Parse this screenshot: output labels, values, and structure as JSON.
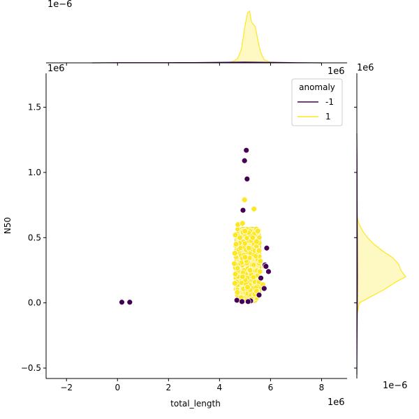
{
  "chart_data": {
    "type": "scatter",
    "title": "",
    "xlabel": "total_length",
    "ylabel": "N50",
    "x_exponent_label": "1e6",
    "y_exponent_label": "1e6",
    "top_marginal_exponent_label": "1e−6",
    "right_marginal_exponent_label": "1e−6",
    "xlim": [
      -2.8,
      9.0
    ],
    "ylim": [
      -0.58,
      1.76
    ],
    "xticks": [
      -2,
      0,
      2,
      4,
      6,
      8
    ],
    "xtick_labels": [
      "−2",
      "0",
      "2",
      "4",
      "6",
      "8"
    ],
    "yticks": [
      -0.5,
      0.0,
      0.5,
      1.0,
      1.5
    ],
    "ytick_labels": [
      "−0.5",
      "0.0",
      "0.5",
      "1.0",
      "1.5"
    ],
    "legend": {
      "title": "anomaly",
      "location": "top-right",
      "entries": [
        {
          "label": "-1",
          "color": "#440154"
        },
        {
          "label": "1",
          "color": "#fde725"
        }
      ]
    },
    "series": [
      {
        "name": "1",
        "color": "#fde725",
        "points": [
          [
            4.98,
            0.79
          ],
          [
            5.35,
            0.72
          ],
          [
            4.72,
            0.6
          ],
          [
            4.9,
            0.61
          ],
          [
            4.62,
            0.52
          ],
          [
            5.5,
            0.55
          ],
          [
            4.65,
            0.45
          ],
          [
            5.45,
            0.47
          ],
          [
            4.6,
            0.38
          ],
          [
            5.55,
            0.4
          ],
          [
            4.58,
            0.3
          ],
          [
            5.6,
            0.32
          ],
          [
            4.62,
            0.22
          ],
          [
            5.58,
            0.24
          ],
          [
            4.6,
            0.15
          ],
          [
            5.55,
            0.16
          ],
          [
            4.7,
            0.08
          ],
          [
            5.45,
            0.09
          ],
          [
            4.85,
            0.04
          ],
          [
            5.25,
            0.03
          ],
          [
            4.8,
            0.5
          ],
          [
            5.3,
            0.5
          ],
          [
            5.0,
            0.35
          ],
          [
            5.2,
            0.25
          ],
          [
            4.9,
            0.2
          ],
          [
            5.1,
            0.12
          ],
          [
            5.7,
            0.14
          ],
          [
            5.75,
            0.28
          ],
          [
            5.0,
            0.55
          ],
          [
            5.15,
            0.42
          ]
        ]
      },
      {
        "name": "-1",
        "color": "#440154",
        "points": [
          [
            5.05,
            1.17
          ],
          [
            4.98,
            1.09
          ],
          [
            5.08,
            0.95
          ],
          [
            4.92,
            0.71
          ],
          [
            0.17,
            0.005
          ],
          [
            0.48,
            0.005
          ],
          [
            5.85,
            0.42
          ],
          [
            5.78,
            0.29
          ],
          [
            5.82,
            0.28
          ],
          [
            5.92,
            0.24
          ],
          [
            5.62,
            0.19
          ],
          [
            5.75,
            0.11
          ],
          [
            5.55,
            0.06
          ],
          [
            4.68,
            0.02
          ],
          [
            4.88,
            0.01
          ],
          [
            5.22,
            0.015
          ],
          [
            5.12,
            0.01
          ]
        ]
      }
    ],
    "marginal_x": {
      "series": [
        {
          "name": "1",
          "color": "#fde725",
          "curve": [
            [
              4.2,
              0.0
            ],
            [
              4.5,
              0.02
            ],
            [
              4.7,
              0.08
            ],
            [
              4.85,
              0.25
            ],
            [
              5.0,
              0.72
            ],
            [
              5.1,
              0.97
            ],
            [
              5.18,
              1.0
            ],
            [
              5.25,
              0.8
            ],
            [
              5.3,
              0.76
            ],
            [
              5.4,
              0.7
            ],
            [
              5.5,
              0.45
            ],
            [
              5.6,
              0.22
            ],
            [
              5.75,
              0.06
            ],
            [
              6.0,
              0.01
            ],
            [
              6.3,
              0.0
            ]
          ]
        },
        {
          "name": "-1",
          "color": "#440154",
          "curve": [
            [
              -1.0,
              0.0
            ],
            [
              0.0,
              0.003
            ],
            [
              1.0,
              0.004
            ],
            [
              2.0,
              0.004
            ],
            [
              3.0,
              0.006
            ],
            [
              4.0,
              0.01
            ],
            [
              5.0,
              0.015
            ],
            [
              6.0,
              0.01
            ],
            [
              7.0,
              0.004
            ],
            [
              8.0,
              0.0
            ]
          ]
        }
      ]
    },
    "marginal_y": {
      "series": [
        {
          "name": "1",
          "color": "#fde725",
          "curve": [
            [
              -0.1,
              0.0
            ],
            [
              0.0,
              0.05
            ],
            [
              0.04,
              0.25
            ],
            [
              0.1,
              0.55
            ],
            [
              0.16,
              0.8
            ],
            [
              0.2,
              1.0
            ],
            [
              0.25,
              0.9
            ],
            [
              0.3,
              0.85
            ],
            [
              0.35,
              0.72
            ],
            [
              0.4,
              0.52
            ],
            [
              0.45,
              0.35
            ],
            [
              0.5,
              0.22
            ],
            [
              0.55,
              0.12
            ],
            [
              0.6,
              0.05
            ],
            [
              0.65,
              0.01
            ],
            [
              0.75,
              0.0
            ]
          ]
        },
        {
          "name": "-1",
          "color": "#440154",
          "curve": [
            [
              -0.55,
              0.0
            ],
            [
              -0.3,
              0.004
            ],
            [
              0.0,
              0.01
            ],
            [
              0.2,
              0.012
            ],
            [
              0.5,
              0.01
            ],
            [
              0.8,
              0.006
            ],
            [
              1.1,
              0.004
            ],
            [
              1.3,
              0.0
            ]
          ]
        }
      ]
    }
  }
}
